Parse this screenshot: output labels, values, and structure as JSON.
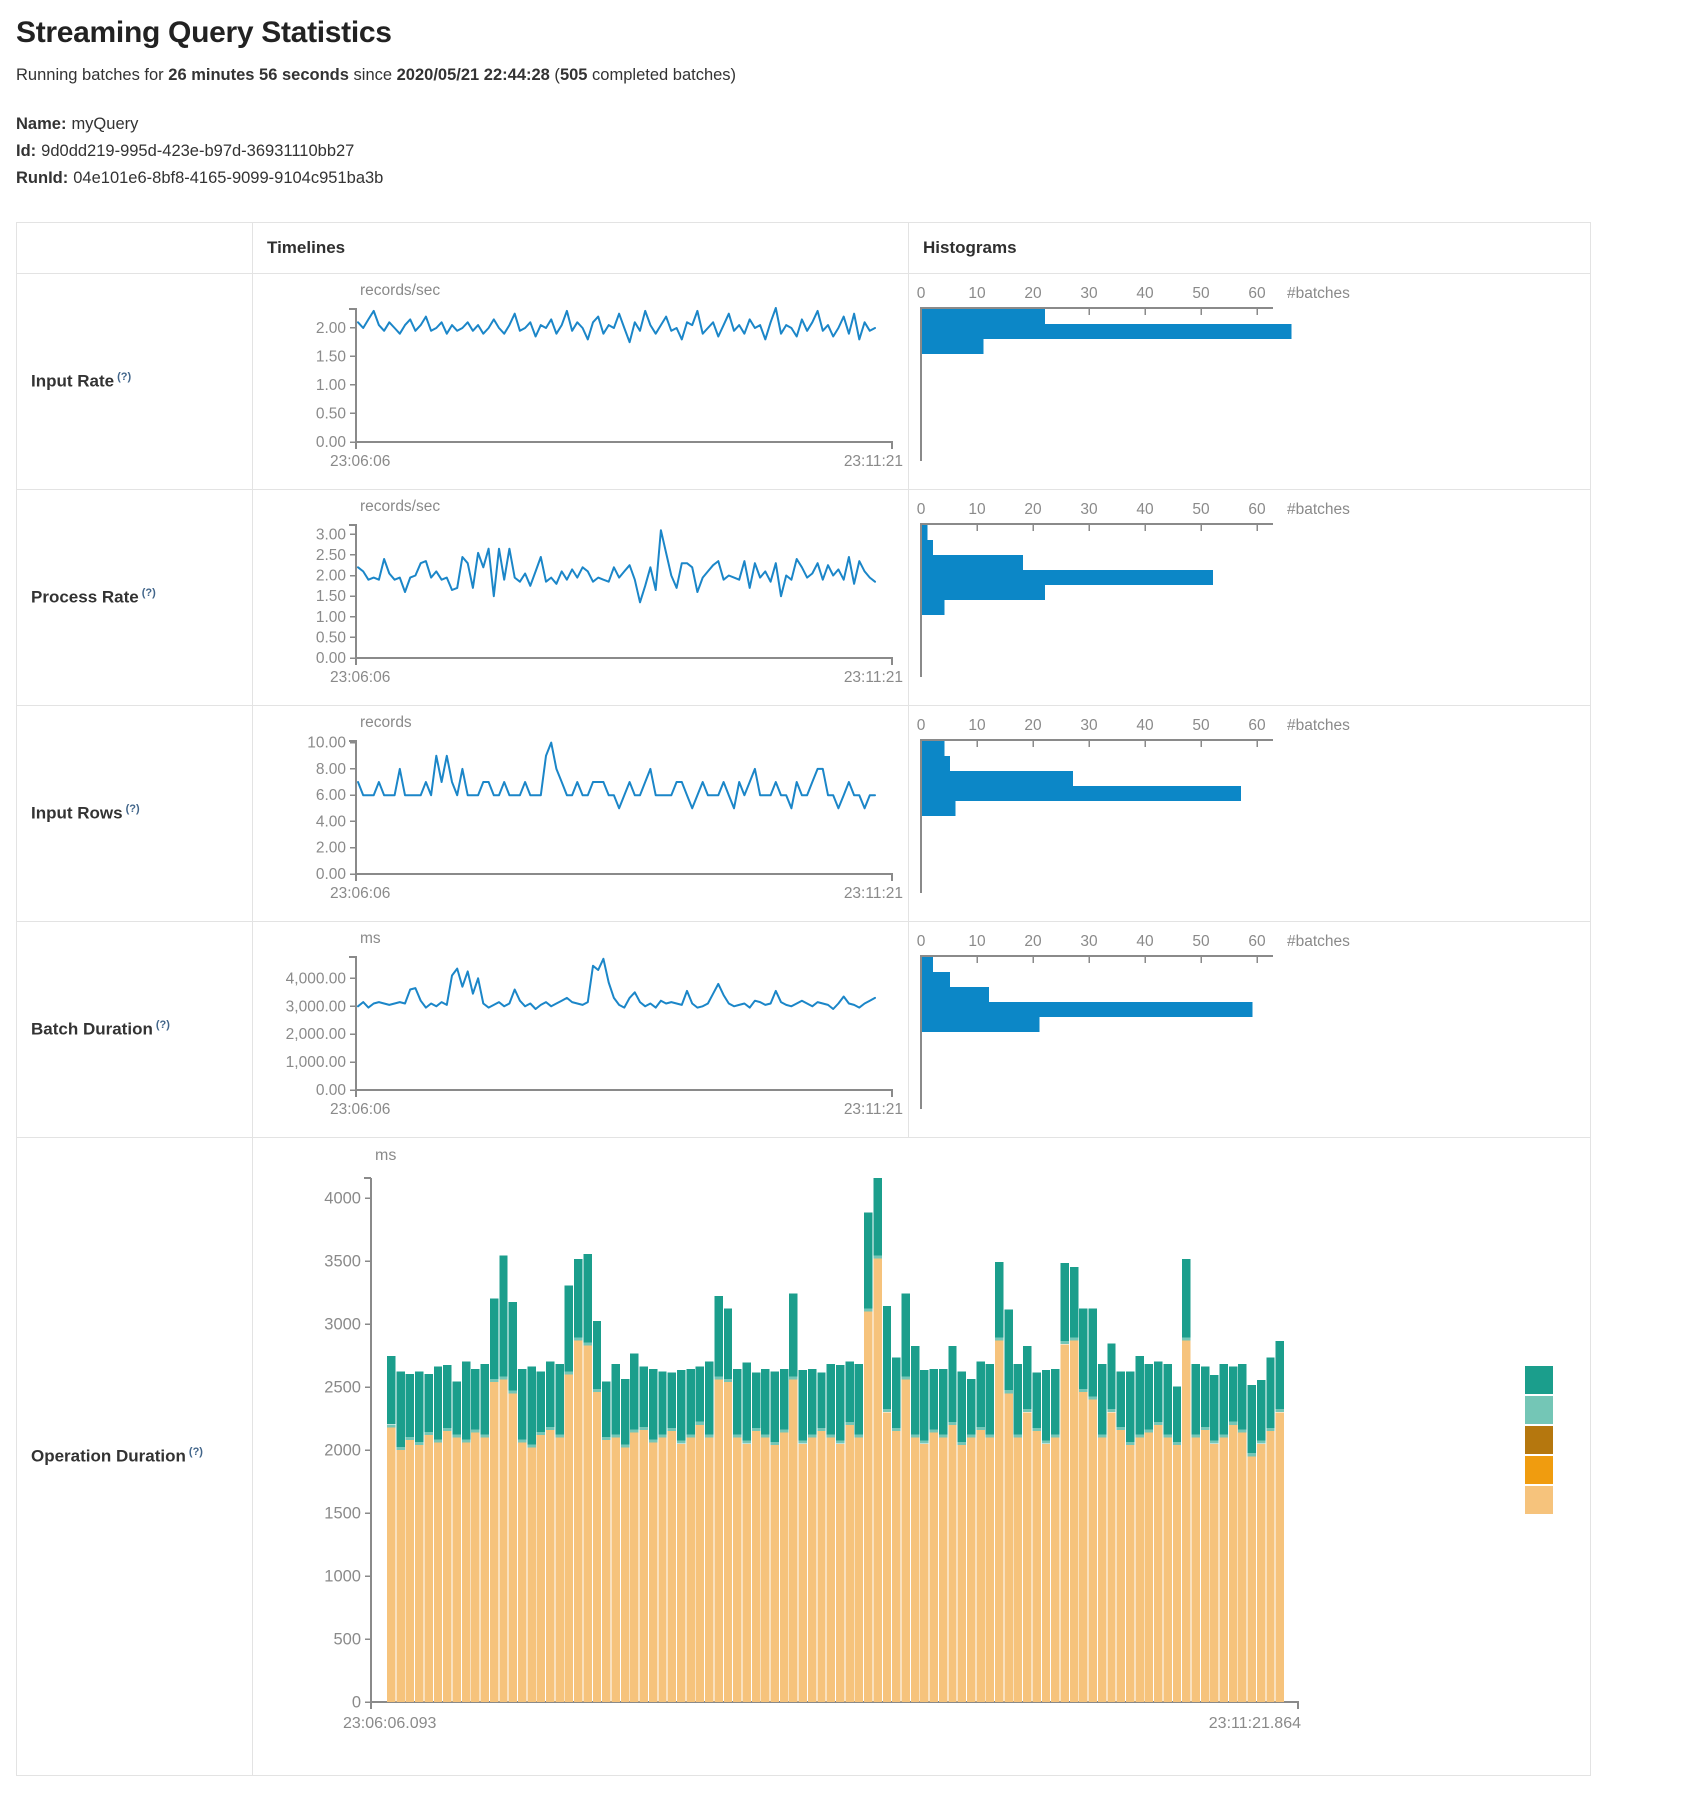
{
  "page": {
    "title": "Streaming Query Statistics",
    "summary": {
      "p1": "Running batches for ",
      "duration": "26 minutes 56 seconds",
      "p2": " since ",
      "start_time": "2020/05/21 22:44:28",
      "p3": " (",
      "completed": "505",
      "p4": " completed batches)"
    },
    "meta": {
      "name_label": "Name:",
      "name": "myQuery",
      "id_label": "Id:",
      "id": "9d0dd219-995d-423e-b97d-36931110bb27",
      "runid_label": "RunId:",
      "runid": "04e101e6-8bf8-4165-9099-9104c951ba3b"
    }
  },
  "table": {
    "timelines_header": "Timelines",
    "histograms_header": "Histograms"
  },
  "colors": {
    "line": "#1b86c8",
    "bar": "#0c87c7",
    "axis": "#8a8a8a",
    "tick_text": "#8a8a8a"
  },
  "chart_data": [
    {
      "metric": "Input Rate",
      "help": "(?)",
      "timeline": {
        "type": "line",
        "unit": "records/sec",
        "ylim": [
          0,
          2.35
        ],
        "yticks": [
          {
            "v": 2,
            "label": "2.00"
          },
          {
            "v": 1.5,
            "label": "1.50"
          },
          {
            "v": 1,
            "label": "1.00"
          },
          {
            "v": 0.5,
            "label": "0.50"
          },
          {
            "v": 0,
            "label": "0.00"
          }
        ],
        "x_start": "23:06:06",
        "x_end": "23:11:21",
        "values": [
          2.1,
          2.0,
          2.15,
          2.3,
          2.05,
          1.95,
          2.1,
          2.0,
          1.9,
          2.05,
          2.15,
          1.95,
          2.05,
          2.2,
          1.95,
          2.0,
          2.1,
          1.9,
          2.05,
          1.95,
          2.0,
          2.1,
          1.95,
          2.05,
          1.9,
          2.0,
          2.15,
          2.0,
          1.9,
          2.05,
          2.25,
          1.95,
          2.0,
          2.1,
          1.85,
          2.05,
          2.0,
          2.15,
          1.9,
          2.05,
          2.3,
          1.95,
          2.1,
          2.0,
          1.8,
          2.1,
          2.2,
          1.9,
          2.05,
          2.0,
          2.25,
          2.0,
          1.75,
          2.1,
          1.95,
          2.3,
          2.05,
          1.9,
          2.05,
          2.2,
          1.95,
          2.0,
          1.8,
          2.1,
          2.05,
          2.3,
          1.9,
          2.0,
          2.1,
          1.85,
          2.05,
          2.25,
          1.95,
          2.05,
          1.9,
          2.15,
          2.0,
          2.05,
          1.8,
          2.1,
          2.35,
          1.9,
          2.05,
          2.0,
          1.85,
          2.15,
          1.95,
          2.1,
          2.3,
          1.95,
          2.05,
          1.85,
          2.0,
          2.2,
          1.9,
          2.25,
          1.8,
          2.1,
          1.95,
          2.0
        ]
      },
      "histogram": {
        "type": "bar",
        "xlabel": "#batches",
        "xticks": [
          0,
          10,
          20,
          30,
          40,
          50,
          60
        ],
        "xmax": 68,
        "values": [
          22,
          66,
          11
        ]
      }
    },
    {
      "metric": "Process Rate",
      "help": "(?)",
      "timeline": {
        "type": "line",
        "unit": "records/sec",
        "ylim": [
          0,
          3.25
        ],
        "yticks": [
          {
            "v": 3,
            "label": "3.00"
          },
          {
            "v": 2.5,
            "label": "2.50"
          },
          {
            "v": 2,
            "label": "2.00"
          },
          {
            "v": 1.5,
            "label": "1.50"
          },
          {
            "v": 1,
            "label": "1.00"
          },
          {
            "v": 0.5,
            "label": "0.50"
          },
          {
            "v": 0,
            "label": "0.00"
          }
        ],
        "x_start": "23:06:06",
        "x_end": "23:11:21",
        "values": [
          2.2,
          2.1,
          1.9,
          1.95,
          1.9,
          2.4,
          2.05,
          1.9,
          1.95,
          1.6,
          1.95,
          2.0,
          2.3,
          2.35,
          1.95,
          2.1,
          1.9,
          1.95,
          1.65,
          1.7,
          2.45,
          2.3,
          1.7,
          2.55,
          2.2,
          2.65,
          1.5,
          2.65,
          1.9,
          2.65,
          1.95,
          1.85,
          2.05,
          1.75,
          2.1,
          2.45,
          1.85,
          1.95,
          1.8,
          2.1,
          1.9,
          2.15,
          1.95,
          2.2,
          2.1,
          1.85,
          1.95,
          1.9,
          1.85,
          2.2,
          1.95,
          2.1,
          2.25,
          1.9,
          1.35,
          1.75,
          2.2,
          1.65,
          3.1,
          2.55,
          2.0,
          1.7,
          2.3,
          2.3,
          2.2,
          1.6,
          1.95,
          2.1,
          2.25,
          2.35,
          1.9,
          2.0,
          1.95,
          1.9,
          2.35,
          1.7,
          2.3,
          1.95,
          2.1,
          1.85,
          2.3,
          1.5,
          2.0,
          1.9,
          2.4,
          2.2,
          1.95,
          2.05,
          2.3,
          1.9,
          2.25,
          2.0,
          2.15,
          1.9,
          2.45,
          1.8,
          2.35,
          2.1,
          1.95,
          1.85
        ]
      },
      "histogram": {
        "type": "bar",
        "xlabel": "#batches",
        "xticks": [
          0,
          10,
          20,
          30,
          40,
          50,
          60
        ],
        "xmax": 68,
        "values": [
          1,
          2,
          18,
          52,
          22,
          4
        ]
      }
    },
    {
      "metric": "Input Rows",
      "help": "(?)",
      "timeline": {
        "type": "line",
        "unit": "records",
        "ylim": [
          0,
          10.2
        ],
        "yticks": [
          {
            "v": 10,
            "label": "10.00"
          },
          {
            "v": 8,
            "label": "8.00"
          },
          {
            "v": 6,
            "label": "6.00"
          },
          {
            "v": 4,
            "label": "4.00"
          },
          {
            "v": 2,
            "label": "2.00"
          },
          {
            "v": 0,
            "label": "0.00"
          }
        ],
        "x_start": "23:06:06",
        "x_end": "23:11:21",
        "values": [
          7,
          6,
          6,
          6,
          7,
          6,
          6,
          6,
          8,
          6,
          6,
          6,
          6,
          7,
          6,
          9,
          7,
          9,
          7,
          6,
          8,
          6,
          6,
          6,
          7,
          7,
          6,
          6,
          7,
          6,
          6,
          6,
          7,
          6,
          6,
          6,
          9,
          10,
          8,
          7,
          6,
          6,
          7,
          6,
          6,
          7,
          7,
          7,
          6,
          6,
          5,
          6,
          7,
          6,
          6,
          7,
          8,
          6,
          6,
          6,
          6,
          7,
          7,
          6,
          5,
          6,
          7,
          6,
          6,
          6,
          7,
          6,
          5,
          7,
          6,
          7,
          8,
          6,
          6,
          6,
          7,
          6,
          6,
          5,
          7,
          6,
          6,
          7,
          8,
          8,
          6,
          6,
          5,
          6,
          7,
          6,
          6,
          5,
          6,
          6
        ]
      },
      "histogram": {
        "type": "bar",
        "xlabel": "#batches",
        "xticks": [
          0,
          10,
          20,
          30,
          40,
          50,
          60
        ],
        "xmax": 68,
        "values": [
          4,
          5,
          27,
          57,
          6
        ]
      }
    },
    {
      "metric": "Batch Duration",
      "help": "(?)",
      "timeline": {
        "type": "line",
        "unit": "ms",
        "ylim": [
          0,
          4800
        ],
        "yticks": [
          {
            "v": 4000,
            "label": "4,000.00"
          },
          {
            "v": 3000,
            "label": "3,000.00"
          },
          {
            "v": 2000,
            "label": "2,000.00"
          },
          {
            "v": 1000,
            "label": "1,000.00"
          },
          {
            "v": 0,
            "label": "0.00"
          }
        ],
        "x_start": "23:06:06",
        "x_end": "23:11:21",
        "values": [
          3000,
          3150,
          2950,
          3100,
          3150,
          3100,
          3050,
          3100,
          3150,
          3100,
          3600,
          3650,
          3200,
          2950,
          3100,
          3000,
          3150,
          3050,
          4100,
          4350,
          3700,
          4250,
          3450,
          4000,
          3100,
          2950,
          3050,
          3150,
          3000,
          3100,
          3600,
          3200,
          3000,
          3100,
          2900,
          3050,
          3150,
          3000,
          3100,
          3200,
          3300,
          3150,
          3100,
          3050,
          3150,
          4450,
          4300,
          4700,
          3850,
          3300,
          3050,
          2950,
          3300,
          3500,
          3150,
          3000,
          3100,
          2950,
          3200,
          3100,
          3150,
          3100,
          3050,
          3550,
          3100,
          2950,
          3000,
          3100,
          3450,
          3800,
          3400,
          3100,
          3000,
          3050,
          3100,
          2950,
          3200,
          3150,
          3050,
          3100,
          3550,
          3150,
          3050,
          3000,
          3100,
          3200,
          3100,
          3000,
          3150,
          3100,
          3050,
          2900,
          3100,
          3350,
          3100,
          3050,
          2950,
          3100,
          3200,
          3300
        ]
      },
      "histogram": {
        "type": "bar",
        "xlabel": "#batches",
        "xticks": [
          0,
          10,
          20,
          30,
          40,
          50,
          60
        ],
        "xmax": 68,
        "values": [
          2,
          5,
          12,
          59,
          21
        ]
      }
    },
    {
      "metric": "Operation Duration",
      "help": "(?)",
      "timeline": {
        "type": "stacked-bar",
        "unit": "ms",
        "ylim": [
          0,
          4160
        ],
        "yticks": [
          {
            "v": 4000,
            "label": "4000"
          },
          {
            "v": 3500,
            "label": "3500"
          },
          {
            "v": 3000,
            "label": "3000"
          },
          {
            "v": 2500,
            "label": "2500"
          },
          {
            "v": 2000,
            "label": "2000"
          },
          {
            "v": 1500,
            "label": "1500"
          },
          {
            "v": 1000,
            "label": "1000"
          },
          {
            "v": 500,
            "label": "500"
          },
          {
            "v": 0,
            "label": "0"
          }
        ],
        "x_start": "23:06:06.093",
        "x_end": "23:11:21.864",
        "legend_colors": [
          "#1b9e8c",
          "#74c6b6",
          "#b5770e",
          "#f09c0f",
          "#f6c37c"
        ],
        "series": [
          {
            "name": "base-segment",
            "color": "#f6c37c",
            "values": [
              2180,
              2000,
              2080,
              2040,
              2120,
              2060,
              2150,
              2100,
              2060,
              2140,
              2100,
              2540,
              2560,
              2450,
              2060,
              2020,
              2120,
              2160,
              2100,
              2600,
              2870,
              2830,
              2460,
              2080,
              2100,
              2020,
              2140,
              2160,
              2060,
              2100,
              2150,
              2050,
              2100,
              2200,
              2100,
              2560,
              2540,
              2100,
              2050,
              2150,
              2100,
              2040,
              2140,
              2560,
              2050,
              2100,
              2150,
              2100,
              2050,
              2200,
              2100,
              3100,
              3520,
              2300,
              2150,
              2560,
              2100,
              2050,
              2140,
              2100,
              2200,
              2040,
              2100,
              2160,
              2100,
              2870,
              2450,
              2100,
              2300,
              2150,
              2050,
              2100,
              2840,
              2870,
              2460,
              2400,
              2100,
              2300,
              2160,
              2040,
              2100,
              2140,
              2200,
              2100,
              2040,
              2870,
              2100,
              2160,
              2050,
              2100,
              2200,
              2140,
              1950,
              2050,
              2150,
              2300
            ]
          },
          {
            "name": "middle-segment",
            "color": "#74c6b6",
            "constant": 25
          },
          {
            "name": "top-segment",
            "color": "#1b9e8c",
            "values": [
              540,
              600,
              500,
              560,
              460,
              580,
              500,
              420,
              620,
              480,
              560,
              640,
              960,
              700,
              560,
              620,
              480,
              520,
              560,
              680,
              620,
              700,
              540,
              440,
              560,
              520,
              600,
              480,
              560,
              500,
              440,
              560,
              520,
              440,
              580,
              640,
              560,
              520,
              620,
              440,
              520,
              560,
              480,
              660,
              560,
              520,
              440,
              560,
              600,
              480,
              560,
              760,
              615,
              820,
              560,
              660,
              700,
              560,
              480,
              520,
              600,
              560,
              440,
              520,
              560,
              600,
              640,
              560,
              500,
              440,
              560,
              520,
              620,
              560,
              640,
              700,
              560,
              520,
              440,
              560,
              620,
              520,
              480,
              560,
              440,
              620,
              560,
              480,
              520,
              560,
              440,
              520,
              540,
              480,
              560,
              540
            ]
          }
        ]
      }
    }
  ]
}
